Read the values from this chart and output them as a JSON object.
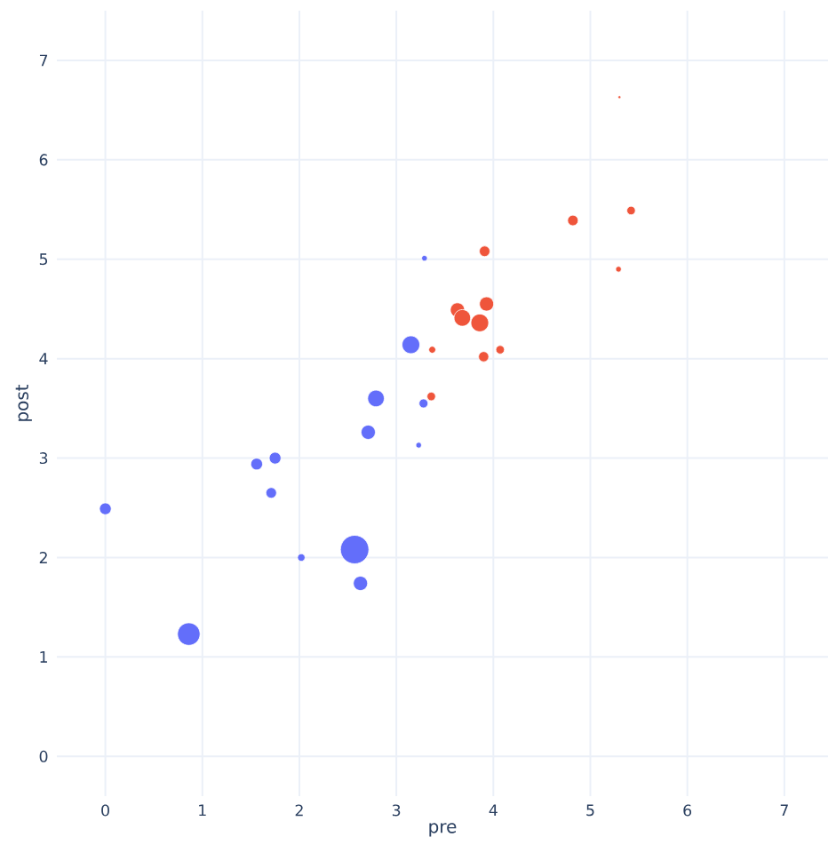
{
  "chart_data": {
    "type": "bubble",
    "xlabel": "pre",
    "ylabel": "post",
    "xlim": [
      -0.5,
      7.45
    ],
    "ylim": [
      -0.4,
      7.5
    ],
    "xticks": [
      0,
      1,
      2,
      3,
      4,
      5,
      6,
      7
    ],
    "yticks": [
      0,
      1,
      2,
      3,
      4,
      5,
      6,
      7
    ],
    "grid": true,
    "series": [
      {
        "color": "#636efa",
        "x": [
          0,
          0.86,
          1.56,
          1.75,
          1.71,
          2.02,
          2.57,
          2.63,
          2.71,
          2.79,
          3.15,
          3.28,
          3.23,
          3.29
        ],
        "values": [
          2.49,
          1.23,
          2.94,
          3.0,
          2.65,
          2.0,
          2.08,
          1.74,
          3.26,
          3.6,
          4.14,
          3.55,
          3.13,
          5.01
        ],
        "sizes": [
          0.17,
          0.63,
          0.17,
          0.17,
          0.14,
          0.07,
          1,
          0.25,
          0.25,
          0.34,
          0.39,
          0.1,
          0.04,
          0.04
        ]
      },
      {
        "color": "#ef553b",
        "x": [
          5.3,
          5.42,
          4.82,
          3.91,
          5.29,
          3.93,
          3.63,
          3.68,
          3.86,
          3.37,
          4.07,
          3.9,
          3.36
        ],
        "values": [
          6.63,
          5.49,
          5.39,
          5.08,
          4.9,
          4.55,
          4.49,
          4.41,
          4.36,
          4.09,
          4.09,
          4.02,
          3.62
        ],
        "sizes": [
          0.01,
          0.09,
          0.14,
          0.14,
          0.04,
          0.25,
          0.25,
          0.34,
          0.39,
          0.06,
          0.09,
          0.13,
          0.09
        ]
      }
    ]
  }
}
